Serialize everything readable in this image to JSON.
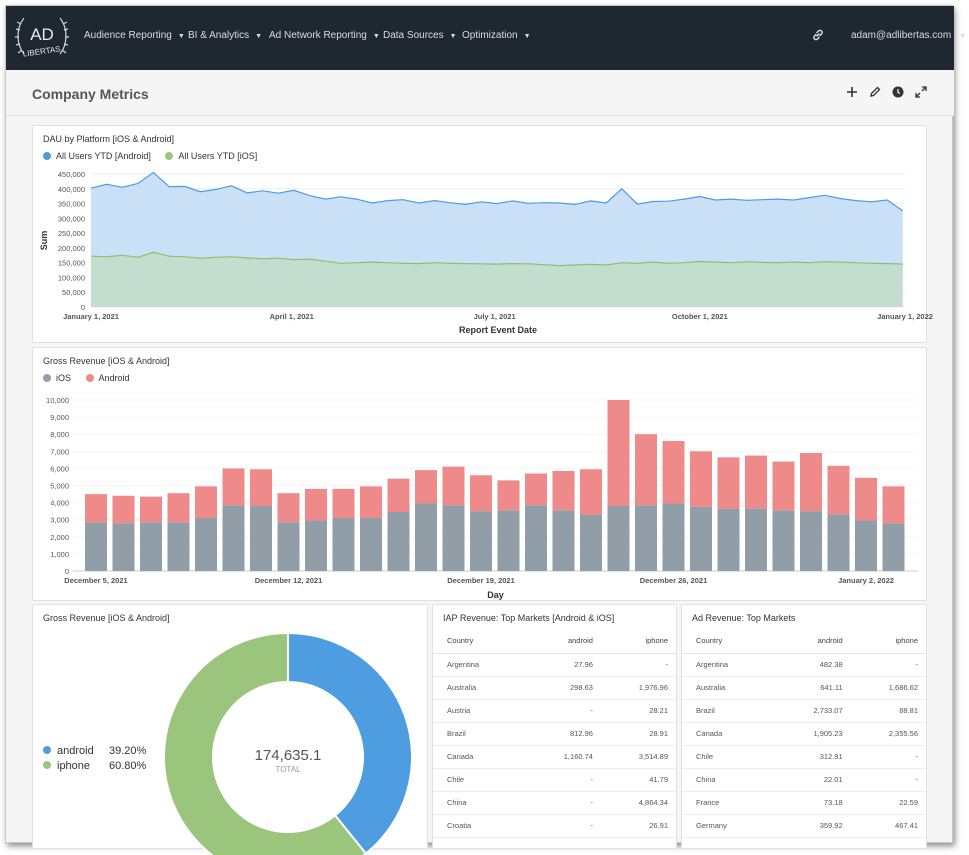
{
  "nav": {
    "logo_text": "AD LIBERTAS",
    "items": [
      "Audience Reporting",
      "BI & Analytics",
      "Ad Network Reporting",
      "Data Sources",
      "Optimization"
    ],
    "user": "adam@adlibertas.com"
  },
  "page": {
    "title": "Company Metrics"
  },
  "toolbar": {
    "icons": [
      "plus-icon",
      "pencil-icon",
      "clock-icon",
      "expand-icon"
    ]
  },
  "colors": {
    "android_blue": "#4d9de0",
    "ios_green": "#9bc47c",
    "ios_grey": "#919ea7",
    "android_red": "#ef8a8a",
    "nav_bg": "#1f2731"
  },
  "dau_chart": {
    "title": "DAU by Platform [iOS & Android]",
    "legend": [
      "All Users YTD [Android]",
      "All Users YTD [iOS]"
    ]
  },
  "gross_bar_chart": {
    "title": "Gross Revenue [iOS & Android]",
    "legend": [
      "iOS",
      "Android"
    ]
  },
  "chart_data": [
    {
      "type": "area",
      "title": "DAU by Platform [iOS & Android]",
      "xlabel": "Report Event Date",
      "ylabel": "Sum",
      "ylim": [
        0,
        450000
      ],
      "y_ticks": [
        "0",
        "50,000",
        "100,000",
        "150,000",
        "200,000",
        "250,000",
        "300,000",
        "350,000",
        "400,000",
        "450,000"
      ],
      "x_ticks": [
        "January 1, 2021",
        "April 1, 2021",
        "July 1, 2021",
        "October 1, 2021",
        "January 1, 2022"
      ],
      "x_start": "2021-01-01",
      "x_end": "2022-01-01",
      "stacked": true,
      "sample_step_days": 7,
      "series": [
        {
          "name": "All Users YTD [iOS]",
          "values": [
            172000,
            170000,
            175000,
            168000,
            185000,
            172000,
            170000,
            165000,
            168000,
            170000,
            166000,
            163000,
            165000,
            160000,
            162000,
            155000,
            148000,
            150000,
            152000,
            150000,
            148000,
            147000,
            150000,
            148000,
            147000,
            146000,
            145000,
            147000,
            146000,
            143000,
            140000,
            142000,
            144000,
            142000,
            150000,
            148000,
            152000,
            148000,
            150000,
            154000,
            152000,
            150000,
            153000,
            151000,
            150000,
            152000,
            150000,
            153000,
            152000,
            150000,
            148000,
            147000,
            145000
          ]
        },
        {
          "name": "All Users YTD [Android]",
          "values": [
            230000,
            245000,
            230000,
            250000,
            270000,
            235000,
            238000,
            225000,
            230000,
            240000,
            220000,
            230000,
            220000,
            235000,
            215000,
            210000,
            225000,
            215000,
            200000,
            210000,
            215000,
            205000,
            210000,
            205000,
            200000,
            210000,
            205000,
            212000,
            205000,
            210000,
            212000,
            205000,
            215000,
            210000,
            250000,
            200000,
            205000,
            210000,
            215000,
            220000,
            210000,
            215000,
            208000,
            212000,
            215000,
            210000,
            220000,
            225000,
            215000,
            210000,
            208000,
            215000,
            180000
          ]
        }
      ]
    },
    {
      "type": "bar",
      "title": "Gross Revenue [iOS & Android]",
      "xlabel": "Day",
      "ylabel": "",
      "ylim": [
        0,
        10000
      ],
      "stacked": true,
      "y_ticks": [
        "0",
        "1,000",
        "2,000",
        "3,000",
        "4,000",
        "5,000",
        "6,000",
        "7,000",
        "8,000",
        "9,000",
        "10,000"
      ],
      "x_ticks": [
        "December 5, 2021",
        "December 12, 2021",
        "December 19, 2021",
        "December 26, 2021",
        "January 2, 2022"
      ],
      "categories": [
        "2021-12-05",
        "2021-12-06",
        "2021-12-07",
        "2021-12-08",
        "2021-12-09",
        "2021-12-10",
        "2021-12-11",
        "2021-12-12",
        "2021-12-13",
        "2021-12-14",
        "2021-12-15",
        "2021-12-16",
        "2021-12-17",
        "2021-12-18",
        "2021-12-19",
        "2021-12-20",
        "2021-12-21",
        "2021-12-22",
        "2021-12-23",
        "2021-12-24",
        "2021-12-25",
        "2021-12-26",
        "2021-12-27",
        "2021-12-28",
        "2021-12-29",
        "2021-12-30",
        "2021-12-31",
        "2022-01-01",
        "2022-01-02",
        "2022-01-03"
      ],
      "series": [
        {
          "name": "iOS",
          "values": [
            2850,
            2800,
            2850,
            2850,
            3100,
            3850,
            3800,
            2850,
            2950,
            3100,
            3100,
            3450,
            3950,
            3850,
            3500,
            3550,
            3850,
            3550,
            3300,
            3800,
            3850,
            3950,
            3750,
            3650,
            3650,
            3550,
            3500,
            3300,
            2950,
            2800
          ]
        },
        {
          "name": "Android",
          "values": [
            1650,
            1600,
            1500,
            1700,
            1850,
            2150,
            2150,
            1700,
            1850,
            1700,
            1850,
            1950,
            1950,
            2250,
            2100,
            1750,
            1850,
            2300,
            2650,
            6200,
            4150,
            3650,
            3250,
            3000,
            3100,
            2850,
            3400,
            2850,
            2500,
            2150
          ]
        }
      ]
    },
    {
      "type": "pie",
      "title": "Gross Revenue [iOS & Android]",
      "labels": [
        "android",
        "iphone"
      ],
      "values": [
        39.2,
        60.8
      ],
      "total": "174,635.1",
      "total_label": "TOTAL"
    }
  ],
  "donut": {
    "title": "Gross Revenue [iOS & Android]",
    "legend": [
      {
        "label": "android",
        "pct": "39.20%"
      },
      {
        "label": "iphone",
        "pct": "60.80%"
      }
    ],
    "total": "174,635.1",
    "total_label": "TOTAL"
  },
  "iap_table": {
    "title": "IAP Revenue: Top Markets [Android & iOS]",
    "columns": [
      "Country",
      "android",
      "iphone"
    ],
    "rows": [
      [
        "Argentina",
        "27.96",
        "-"
      ],
      [
        "Australia",
        "298.63",
        "1,976.96"
      ],
      [
        "Austria",
        "-",
        "28.21"
      ],
      [
        "Brazil",
        "812.96",
        "28.91"
      ],
      [
        "Canada",
        "1,160.74",
        "3,514.89"
      ],
      [
        "Chile",
        "-",
        "41.79"
      ],
      [
        "China",
        "-",
        "4,864.34"
      ],
      [
        "Croatia",
        "-",
        "26.91"
      ]
    ]
  },
  "ad_table": {
    "title": "Ad Revenue: Top Markets",
    "columns": [
      "Country",
      "android",
      "iphone"
    ],
    "rows": [
      [
        "Argentina",
        "482.38",
        "-"
      ],
      [
        "Australia",
        "641.11",
        "1,686.62"
      ],
      [
        "Brazil",
        "2,733.07",
        "88.81"
      ],
      [
        "Canada",
        "1,905.23",
        "2,355.56"
      ],
      [
        "Chile",
        "312.91",
        "-"
      ],
      [
        "China",
        "22.01",
        "-"
      ],
      [
        "France",
        "73.18",
        "22.59"
      ],
      [
        "Germany",
        "359.92",
        "467.41"
      ]
    ]
  }
}
